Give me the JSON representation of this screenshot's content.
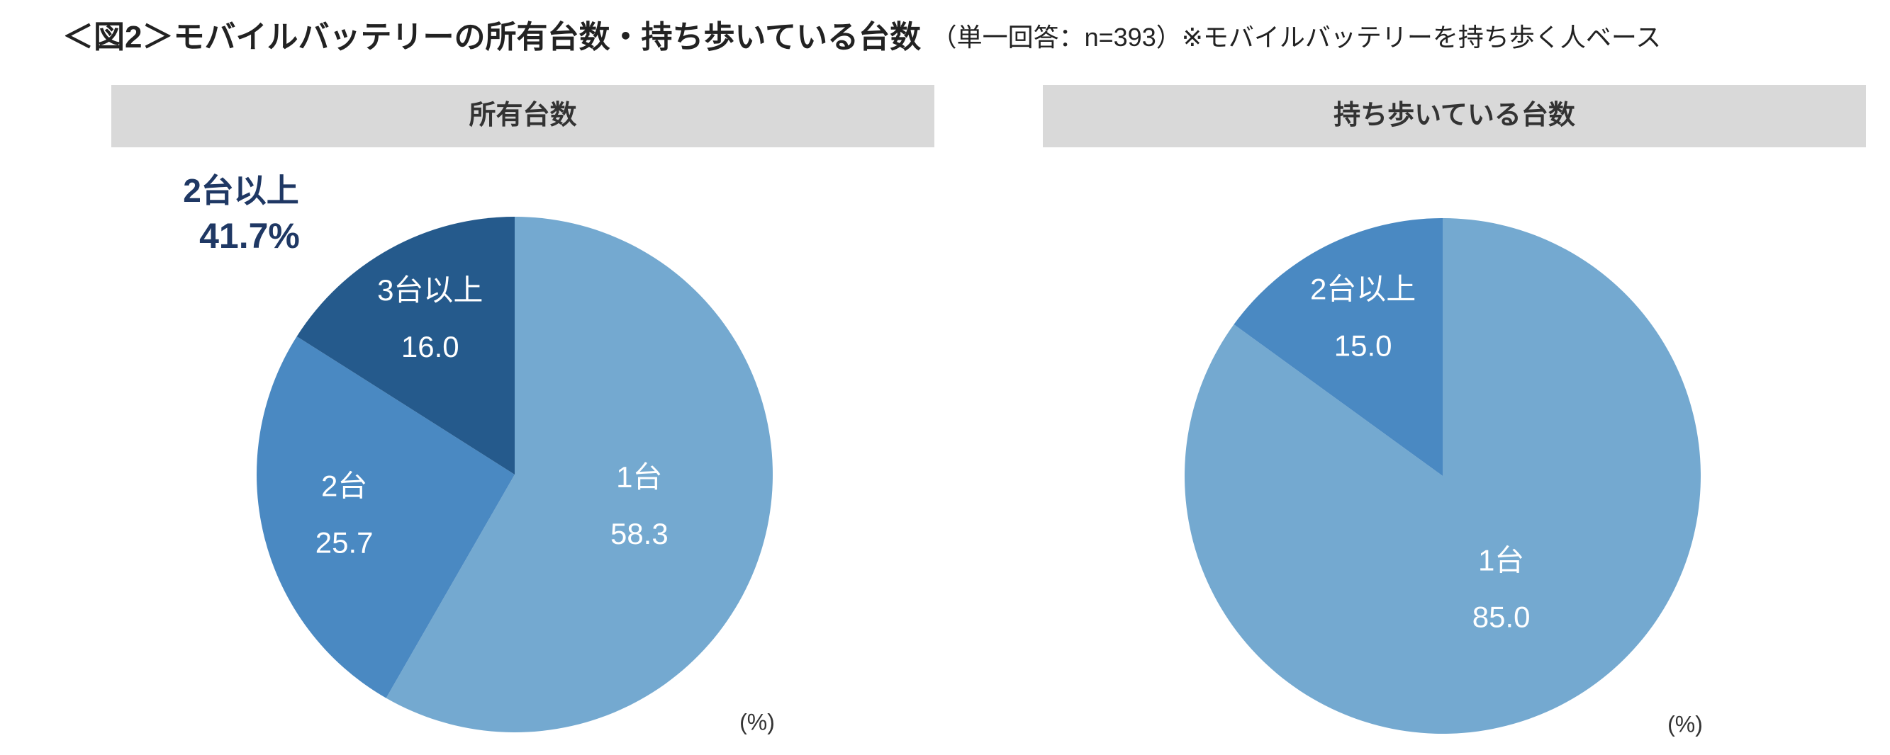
{
  "title": "＜図2＞モバイルバッテリーの所有台数・持ち歩いている台数",
  "subtitle": "（単一回答：n=393）※モバイルバッテリーを持ち歩く人ベース",
  "chart_data": [
    {
      "type": "pie",
      "title": "所有台数",
      "categories": [
        "1台",
        "2台",
        "3台以上"
      ],
      "values": [
        58.3,
        25.7,
        16.0
      ],
      "value_labels": [
        "58.3",
        "25.7",
        "16.0"
      ],
      "colors": [
        "#74a9d0",
        "#4a89c2",
        "#255a8c"
      ],
      "unit": "(%)",
      "annotation": {
        "text": "2台以上",
        "value": 41.7,
        "value_label": "41.7%"
      }
    },
    {
      "type": "pie",
      "title": "持ち歩いている台数",
      "categories": [
        "1台",
        "2台以上"
      ],
      "values": [
        85.0,
        15.0
      ],
      "value_labels": [
        "85.0",
        "15.0"
      ],
      "colors": [
        "#74a9d0",
        "#4a89c2"
      ],
      "unit": "(%)"
    }
  ]
}
